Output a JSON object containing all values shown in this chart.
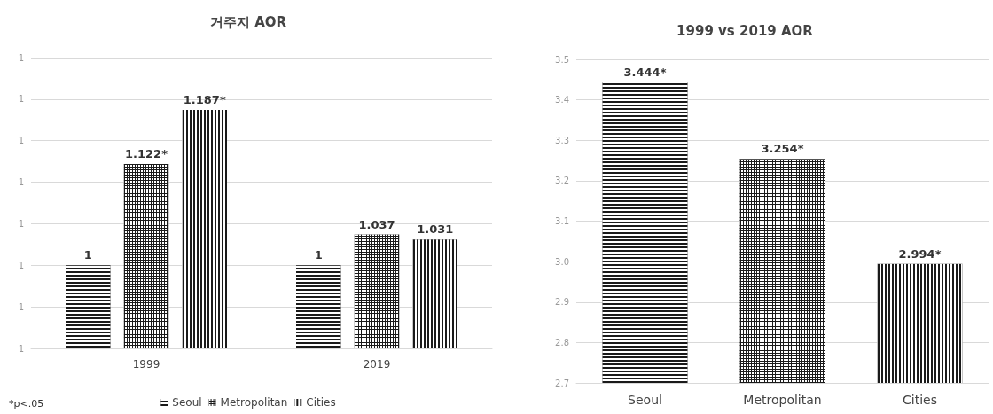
{
  "chart_data": [
    {
      "type": "bar",
      "title": "거주지 AOR",
      "categories": [
        "1999",
        "2019"
      ],
      "series": [
        {
          "name": "Seoul",
          "color": "#1a1a1a",
          "values": [
            1,
            1
          ],
          "value_labels": [
            "1",
            "1"
          ]
        },
        {
          "name": "Metropolitan",
          "color": "#1a1a1a",
          "values": [
            1.122,
            1.037
          ],
          "value_labels": [
            "1.122*",
            "1.037"
          ]
        },
        {
          "name": "Cities",
          "color": "#1a1a1a",
          "values": [
            1.187,
            1.031
          ],
          "value_labels": [
            "1.187*",
            "1.031"
          ]
        }
      ],
      "ylim": [
        0.9,
        1.25
      ],
      "yticks": [
        {
          "value": 0.9,
          "label": "1"
        },
        {
          "value": 0.95,
          "label": "1"
        },
        {
          "value": 1.0,
          "label": "1"
        },
        {
          "value": 1.05,
          "label": "1"
        },
        {
          "value": 1.1,
          "label": "1"
        },
        {
          "value": 1.15,
          "label": "1"
        },
        {
          "value": 1.2,
          "label": "1"
        },
        {
          "value": 1.25,
          "label": "1"
        }
      ],
      "grid": "y",
      "legend": "bottom",
      "annotations": [
        "*p<.05"
      ]
    },
    {
      "type": "bar",
      "title": "1999 vs 2019 AOR",
      "categories": [
        "Seoul",
        "Metropolitan",
        "Cities"
      ],
      "series": [
        {
          "color": "#1a1a1a",
          "values": [
            3.444,
            3.254,
            2.994
          ],
          "value_labels": [
            "3.444*",
            "3.254*",
            "2.994*"
          ]
        }
      ],
      "ylim": [
        2.7,
        3.5
      ],
      "yticks": [
        {
          "value": 2.7,
          "label": "2.7"
        },
        {
          "value": 2.8,
          "label": "2.8"
        },
        {
          "value": 2.9,
          "label": "2.9"
        },
        {
          "value": 3.0,
          "label": "3.0"
        },
        {
          "value": 3.1,
          "label": "3.1"
        },
        {
          "value": 3.2,
          "label": "3.2"
        },
        {
          "value": 3.3,
          "label": "3.3"
        },
        {
          "value": 3.4,
          "label": "3.4"
        },
        {
          "value": 3.5,
          "label": "3.5"
        }
      ],
      "grid": "y"
    }
  ]
}
